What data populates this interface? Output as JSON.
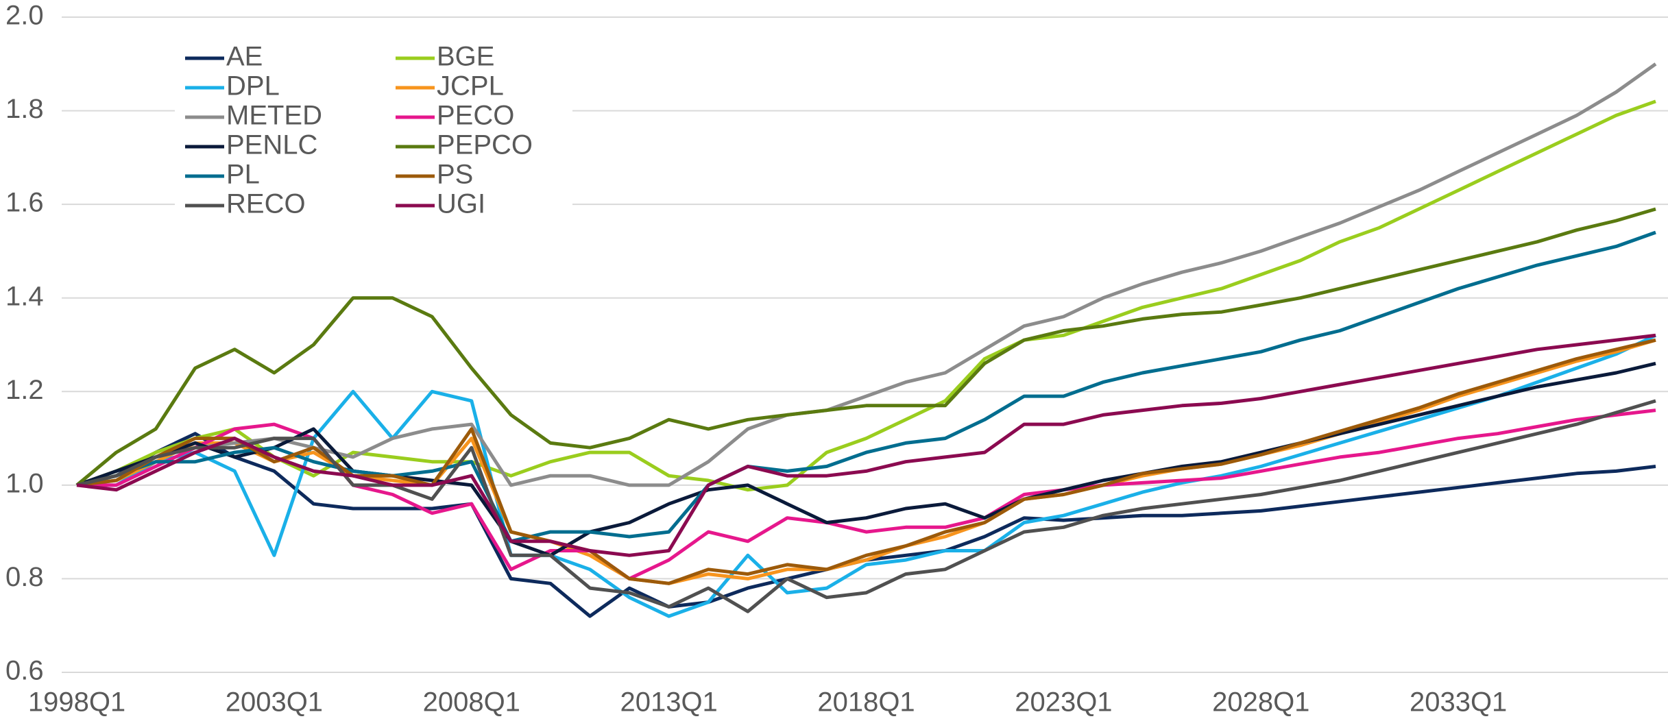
{
  "chart_data": {
    "type": "line",
    "categories": [
      "1998Q1",
      null,
      null,
      null,
      null,
      "2003Q1",
      null,
      null,
      null,
      null,
      "2008Q1",
      null,
      null,
      null,
      null,
      "2013Q1",
      null,
      null,
      null,
      null,
      "2018Q1",
      null,
      null,
      null,
      null,
      "2023Q1",
      null,
      null,
      null,
      null,
      "2028Q1",
      null,
      null,
      null,
      null,
      "2033Q1",
      null,
      null,
      null,
      null,
      null
    ],
    "ylim": [
      0.6,
      2.0
    ],
    "yticks": [
      {
        "value": 0.6,
        "label": "0.6"
      },
      {
        "value": 0.8,
        "label": "0.8"
      },
      {
        "value": 1.0,
        "label": "1.0"
      },
      {
        "value": 1.2,
        "label": "1.2"
      },
      {
        "value": 1.4,
        "label": "1.4"
      },
      {
        "value": 1.6,
        "label": "1.6"
      },
      {
        "value": 1.8,
        "label": "1.8"
      },
      {
        "value": 2.0,
        "label": "2.0"
      }
    ],
    "grid": true,
    "legend": "upper left",
    "series": [
      {
        "name": "AE",
        "color": "#0d2a5c",
        "values": [
          1.0,
          1.02,
          1.07,
          1.11,
          1.06,
          1.03,
          0.96,
          0.95,
          0.95,
          0.95,
          0.96,
          0.8,
          0.79,
          0.72,
          0.78,
          0.74,
          0.75,
          0.78,
          0.8,
          0.82,
          0.84,
          0.85,
          0.86,
          0.89,
          0.93,
          0.925,
          0.93,
          0.935,
          0.935,
          0.94,
          0.945,
          0.955,
          0.965,
          0.975,
          0.985,
          0.995,
          1.005,
          1.015,
          1.025,
          1.03,
          1.04
        ]
      },
      {
        "name": "BGE",
        "color": "#9acd1e",
        "values": [
          1.0,
          1.03,
          1.07,
          1.1,
          1.12,
          1.06,
          1.02,
          1.07,
          1.06,
          1.05,
          1.05,
          1.02,
          1.05,
          1.07,
          1.07,
          1.02,
          1.01,
          0.99,
          1.0,
          1.07,
          1.1,
          1.14,
          1.18,
          1.27,
          1.31,
          1.32,
          1.35,
          1.38,
          1.4,
          1.42,
          1.45,
          1.48,
          1.52,
          1.55,
          1.59,
          1.63,
          1.67,
          1.71,
          1.75,
          1.79,
          1.82
        ]
      },
      {
        "name": "DPL",
        "color": "#1ab0e8",
        "values": [
          1.0,
          1.0,
          1.05,
          1.07,
          1.03,
          0.85,
          1.1,
          1.2,
          1.1,
          1.2,
          1.18,
          0.85,
          0.85,
          0.82,
          0.76,
          0.72,
          0.75,
          0.85,
          0.77,
          0.78,
          0.83,
          0.84,
          0.86,
          0.86,
          0.92,
          0.935,
          0.96,
          0.985,
          1.005,
          1.02,
          1.04,
          1.065,
          1.09,
          1.115,
          1.14,
          1.165,
          1.19,
          1.22,
          1.25,
          1.28,
          1.32
        ]
      },
      {
        "name": "JCPL",
        "color": "#f7941d",
        "values": [
          1.0,
          1.01,
          1.05,
          1.09,
          1.09,
          1.05,
          1.07,
          1.02,
          1.01,
          1.0,
          1.1,
          0.9,
          0.88,
          0.85,
          0.8,
          0.79,
          0.81,
          0.8,
          0.82,
          0.82,
          0.84,
          0.87,
          0.89,
          0.92,
          0.97,
          0.98,
          1.0,
          1.02,
          1.035,
          1.045,
          1.065,
          1.085,
          1.11,
          1.135,
          1.16,
          1.19,
          1.215,
          1.24,
          1.265,
          1.285,
          1.31
        ]
      },
      {
        "name": "METED",
        "color": "#8c8c8c",
        "values": [
          1.0,
          1.02,
          1.06,
          1.08,
          1.09,
          1.1,
          1.08,
          1.06,
          1.1,
          1.12,
          1.13,
          1.0,
          1.02,
          1.02,
          1.0,
          1.0,
          1.05,
          1.12,
          1.15,
          1.16,
          1.19,
          1.22,
          1.24,
          1.29,
          1.34,
          1.36,
          1.4,
          1.43,
          1.455,
          1.475,
          1.5,
          1.53,
          1.56,
          1.595,
          1.63,
          1.67,
          1.71,
          1.75,
          1.79,
          1.84,
          1.9
        ]
      },
      {
        "name": "PECO",
        "color": "#e6178c",
        "values": [
          1.0,
          1.0,
          1.04,
          1.08,
          1.12,
          1.13,
          1.1,
          1.0,
          0.98,
          0.94,
          0.96,
          0.82,
          0.86,
          0.86,
          0.8,
          0.84,
          0.9,
          0.88,
          0.93,
          0.92,
          0.9,
          0.91,
          0.91,
          0.93,
          0.98,
          0.99,
          1.0,
          1.005,
          1.01,
          1.015,
          1.03,
          1.045,
          1.06,
          1.07,
          1.085,
          1.1,
          1.11,
          1.125,
          1.14,
          1.15,
          1.16
        ]
      },
      {
        "name": "PENLC",
        "color": "#0a1a3a",
        "values": [
          1.0,
          1.03,
          1.06,
          1.09,
          1.06,
          1.08,
          1.12,
          1.03,
          1.02,
          1.01,
          1.0,
          0.88,
          0.85,
          0.9,
          0.92,
          0.96,
          0.99,
          1.0,
          0.96,
          0.92,
          0.93,
          0.95,
          0.96,
          0.93,
          0.97,
          0.99,
          1.01,
          1.025,
          1.04,
          1.05,
          1.07,
          1.09,
          1.11,
          1.13,
          1.15,
          1.17,
          1.19,
          1.21,
          1.225,
          1.24,
          1.26
        ]
      },
      {
        "name": "PEPCO",
        "color": "#5a7a10",
        "values": [
          1.0,
          1.07,
          1.12,
          1.25,
          1.29,
          1.24,
          1.3,
          1.4,
          1.4,
          1.36,
          1.25,
          1.15,
          1.09,
          1.08,
          1.1,
          1.14,
          1.12,
          1.14,
          1.15,
          1.16,
          1.17,
          1.17,
          1.17,
          1.26,
          1.31,
          1.33,
          1.34,
          1.355,
          1.365,
          1.37,
          1.385,
          1.4,
          1.42,
          1.44,
          1.46,
          1.48,
          1.5,
          1.52,
          1.545,
          1.565,
          1.59
        ]
      },
      {
        "name": "PL",
        "color": "#006d8f",
        "values": [
          1.0,
          1.02,
          1.05,
          1.05,
          1.07,
          1.08,
          1.05,
          1.03,
          1.02,
          1.03,
          1.05,
          0.88,
          0.9,
          0.9,
          0.89,
          0.9,
          1.0,
          1.04,
          1.03,
          1.04,
          1.07,
          1.09,
          1.1,
          1.14,
          1.19,
          1.19,
          1.22,
          1.24,
          1.255,
          1.27,
          1.285,
          1.31,
          1.33,
          1.36,
          1.39,
          1.42,
          1.445,
          1.47,
          1.49,
          1.51,
          1.54
        ]
      },
      {
        "name": "PS",
        "color": "#9c5a0a",
        "values": [
          1.0,
          1.01,
          1.06,
          1.1,
          1.1,
          1.05,
          1.08,
          1.02,
          1.02,
          1.0,
          1.12,
          0.9,
          0.88,
          0.86,
          0.8,
          0.79,
          0.82,
          0.81,
          0.83,
          0.82,
          0.85,
          0.87,
          0.9,
          0.92,
          0.97,
          0.98,
          1.0,
          1.025,
          1.035,
          1.045,
          1.065,
          1.09,
          1.115,
          1.14,
          1.165,
          1.195,
          1.22,
          1.245,
          1.27,
          1.29,
          1.31
        ]
      },
      {
        "name": "RECO",
        "color": "#505050",
        "values": [
          1.0,
          1.02,
          1.06,
          1.08,
          1.08,
          1.1,
          1.1,
          1.0,
          1.0,
          0.97,
          1.08,
          0.85,
          0.85,
          0.78,
          0.77,
          0.74,
          0.78,
          0.73,
          0.8,
          0.76,
          0.77,
          0.81,
          0.82,
          0.86,
          0.9,
          0.91,
          0.935,
          0.95,
          0.96,
          0.97,
          0.98,
          0.995,
          1.01,
          1.03,
          1.05,
          1.07,
          1.09,
          1.11,
          1.13,
          1.155,
          1.18
        ]
      },
      {
        "name": "UGI",
        "color": "#8b0a50",
        "values": [
          1.0,
          0.99,
          1.03,
          1.07,
          1.1,
          1.06,
          1.03,
          1.02,
          1.0,
          1.0,
          1.02,
          0.88,
          0.88,
          0.86,
          0.85,
          0.86,
          1.0,
          1.04,
          1.02,
          1.02,
          1.03,
          1.05,
          1.06,
          1.07,
          1.13,
          1.13,
          1.15,
          1.16,
          1.17,
          1.175,
          1.185,
          1.2,
          1.215,
          1.23,
          1.245,
          1.26,
          1.275,
          1.29,
          1.3,
          1.31,
          1.32
        ]
      }
    ]
  }
}
